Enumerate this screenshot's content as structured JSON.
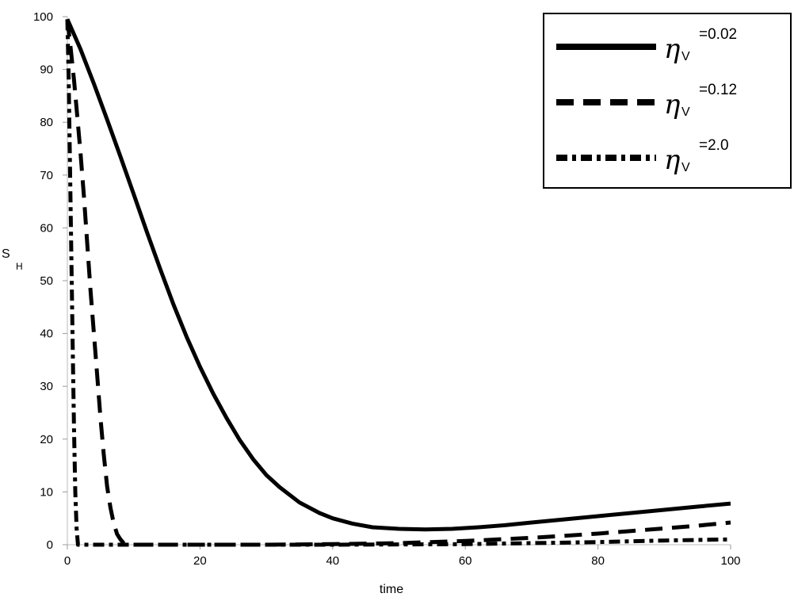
{
  "chart_data": {
    "type": "line",
    "xlabel": "time",
    "ylabel": "S",
    "ylabel_subscript": "H",
    "xlim": [
      0,
      100
    ],
    "ylim": [
      0,
      100
    ],
    "xticks": [
      0,
      20,
      40,
      60,
      80,
      100
    ],
    "yticks": [
      0,
      10,
      20,
      30,
      40,
      50,
      60,
      70,
      80,
      90,
      100
    ],
    "grid": false,
    "legend_position": "top-right",
    "series": [
      {
        "name": "=0.02",
        "legend_symbol": "η",
        "legend_subscript": "V",
        "style": "solid",
        "color": "#000000",
        "x": [
          0,
          2,
          4,
          6,
          8,
          10,
          12,
          14,
          16,
          18,
          20,
          22,
          24,
          26,
          28,
          30,
          32,
          35,
          38,
          40,
          43,
          46,
          50,
          54,
          58,
          62,
          66,
          70,
          75,
          80,
          85,
          90,
          95,
          100
        ],
        "y": [
          99.5,
          93.8,
          87.3,
          80.5,
          73.5,
          66.4,
          59.2,
          52.2,
          45.5,
          39.3,
          33.7,
          28.6,
          24.0,
          19.8,
          16.2,
          13.2,
          10.9,
          8.0,
          6.0,
          5.0,
          4.0,
          3.3,
          3.0,
          2.9,
          3.0,
          3.3,
          3.7,
          4.2,
          4.8,
          5.4,
          6.0,
          6.6,
          7.2,
          7.8
        ]
      },
      {
        "name": "=0.12",
        "legend_symbol": "η",
        "legend_subscript": "V",
        "style": "dashed",
        "color": "#000000",
        "x": [
          0,
          0.5,
          1,
          1.5,
          2,
          2.5,
          3,
          3.5,
          4,
          4.5,
          5,
          5.5,
          6,
          6.5,
          7,
          7.5,
          8,
          8.5,
          9,
          10,
          15,
          20,
          30,
          40,
          50,
          60,
          65,
          70,
          75,
          80,
          85,
          90,
          95,
          100
        ],
        "y": [
          99.5,
          94,
          88,
          81,
          74,
          66,
          57,
          48,
          40,
          32,
          24,
          17,
          11,
          7,
          4,
          2,
          1,
          0.3,
          0,
          0,
          0,
          0,
          0,
          0.1,
          0.3,
          0.7,
          1.0,
          1.3,
          1.7,
          2.1,
          2.6,
          3.1,
          3.6,
          4.2
        ]
      },
      {
        "name": "=2.0",
        "legend_symbol": "η",
        "legend_subscript": "V",
        "style": "dash-dot",
        "color": "#000000",
        "x": [
          0,
          0.2,
          0.4,
          0.6,
          0.8,
          1.0,
          1.2,
          1.4,
          1.6,
          2,
          5,
          10,
          20,
          40,
          60,
          70,
          80,
          90,
          100
        ],
        "y": [
          99.5,
          88,
          72,
          55,
          38,
          22,
          10,
          3,
          0,
          0,
          0,
          0,
          0,
          0,
          0.1,
          0.3,
          0.5,
          0.8,
          1.0
        ]
      }
    ]
  }
}
